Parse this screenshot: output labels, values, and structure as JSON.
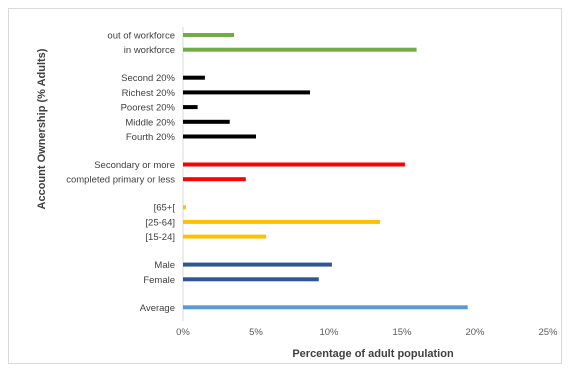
{
  "chart_data": {
    "type": "bar",
    "orientation": "horizontal",
    "title": "",
    "xlabel": "Percentage of adult population",
    "ylabel": "Account Ownership (% Adults)",
    "xlim": [
      0,
      25
    ],
    "x_ticks": [
      "0%",
      "5%",
      "10%",
      "15%",
      "20%",
      "25%"
    ],
    "grid": false,
    "legend": "none",
    "groups": [
      {
        "color": "#70ad47",
        "items": [
          {
            "label": "out of workforce",
            "value": 3.5
          },
          {
            "label": "in workforce",
            "value": 16
          }
        ]
      },
      {
        "color": "#000000",
        "items": [
          {
            "label": "Second 20%",
            "value": 1.5
          },
          {
            "label": "Richest 20%",
            "value": 8.7
          },
          {
            "label": "Poorest 20%",
            "value": 1.0
          },
          {
            "label": "Middle 20%",
            "value": 3.2
          },
          {
            "label": "Fourth 20%",
            "value": 5.0
          }
        ]
      },
      {
        "color": "#ff0000",
        "items": [
          {
            "label": "Secondary or more",
            "value": 15.2
          },
          {
            "label": "completed primary or less",
            "value": 4.3
          }
        ]
      },
      {
        "color": "#ffc000",
        "items": [
          {
            "label": "[65+[",
            "value": 0.2
          },
          {
            "label": "[25-64]",
            "value": 13.5
          },
          {
            "label": "[15-24]",
            "value": 5.7
          }
        ]
      },
      {
        "color": "#2f5597",
        "items": [
          {
            "label": "Male",
            "value": 10.2
          },
          {
            "label": "Female",
            "value": 9.3
          }
        ]
      },
      {
        "color": "#5b9bd5",
        "items": [
          {
            "label": "Average",
            "value": 19.5
          }
        ]
      }
    ]
  }
}
